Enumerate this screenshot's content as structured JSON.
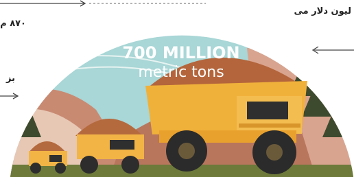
{
  "headline": {
    "amount": "700 MILLION",
    "unit": "metric tons"
  },
  "side_texts": {
    "top_left": "۸۷۰ م",
    "top_right": "لیون دلار می",
    "left": "بز"
  }
}
